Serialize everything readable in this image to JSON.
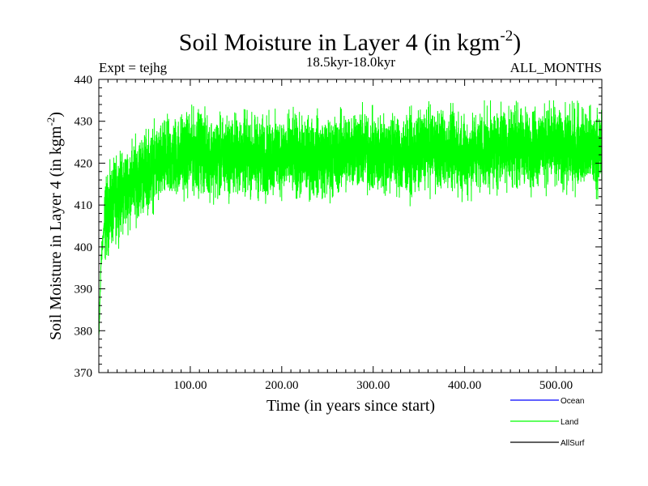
{
  "chart_data": {
    "type": "line",
    "title_main": "Soil Moisture in Layer 4 (in kgm",
    "title_sup": "-2",
    "title_close": ")",
    "expt_label": "Expt = tejhg",
    "period_label": "18.5kyr-18.0kyr",
    "months_label": "ALL_MONTHS",
    "xlabel": "Time (in years since start)",
    "ylabel_main": "Soil Moisture in Layer 4 (in kgm",
    "ylabel_sup": "-2",
    "ylabel_close": ")",
    "xlim": [
      0,
      550
    ],
    "ylim": [
      370,
      440
    ],
    "x_ticks": [
      100,
      200,
      300,
      400,
      500
    ],
    "x_tick_labels": [
      "100.00",
      "200.00",
      "300.00",
      "400.00",
      "500.00"
    ],
    "y_ticks": [
      370,
      380,
      390,
      400,
      410,
      420,
      430,
      440
    ],
    "y_tick_labels": [
      "370",
      "380",
      "390",
      "400",
      "410",
      "420",
      "430",
      "440"
    ],
    "legend": [
      {
        "name": "Ocean",
        "color": "#0000ff"
      },
      {
        "name": "Land",
        "color": "#00ff00"
      },
      {
        "name": "AllSurf",
        "color": "#000000"
      }
    ],
    "series": [
      {
        "name": "Land",
        "color": "#00ff00",
        "x": [
          0,
          1,
          2,
          4,
          6,
          8,
          10,
          15,
          20,
          30,
          40,
          50,
          60,
          70,
          80,
          90,
          100,
          110,
          120,
          130,
          140,
          150,
          160,
          170,
          180,
          190,
          200,
          210,
          220,
          230,
          240,
          250,
          260,
          270,
          280,
          290,
          300,
          310,
          320,
          330,
          340,
          350,
          360,
          370,
          380,
          390,
          400,
          410,
          420,
          430,
          440,
          450,
          460,
          470,
          480,
          490,
          500,
          510,
          520,
          530,
          540,
          550
        ],
        "values": [
          377,
          385,
          394,
          401,
          405,
          407,
          408,
          410,
          412,
          414,
          416,
          418,
          419,
          420,
          421,
          422,
          422.5,
          423,
          422,
          421,
          421.5,
          422,
          422,
          421.5,
          421,
          421.5,
          422,
          422,
          421,
          421.5,
          422,
          421,
          422,
          423,
          424,
          423,
          422,
          422,
          423,
          422,
          421.5,
          422.5,
          424,
          423.5,
          423,
          422.5,
          422,
          422.5,
          423,
          423.5,
          424,
          424.5,
          424,
          423.5,
          424,
          424.5,
          424,
          423.5,
          424,
          423.5,
          423,
          423
        ],
        "noise_amplitude": 4.5,
        "min": 376,
        "max": 435
      }
    ]
  }
}
